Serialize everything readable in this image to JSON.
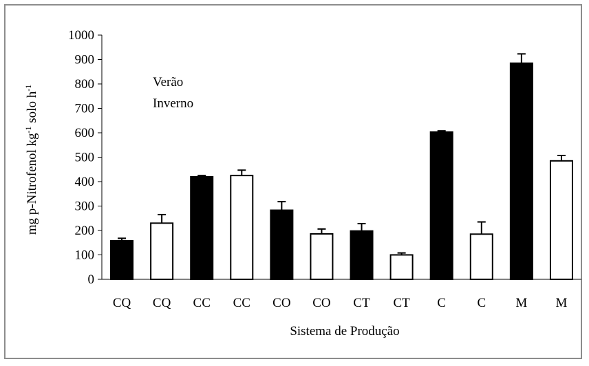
{
  "chart_data": {
    "type": "bar",
    "ylabel": "mg p-Nitrofenol kg",
    "ylabel_sup1": "-1",
    "ylabel_mid": " solo h",
    "ylabel_sup2": "-1",
    "xlabel": "Sistema de Produção",
    "ylim": [
      0,
      1000
    ],
    "yticks": [
      0,
      100,
      200,
      300,
      400,
      500,
      600,
      700,
      800,
      900,
      1000
    ],
    "grid": false,
    "legend_position": "top-left",
    "categories": [
      "CQ",
      "CQ",
      "CC",
      "CC",
      "CO",
      "CO",
      "CT",
      "CT",
      "C",
      "C",
      "M",
      "M"
    ],
    "series": [
      {
        "name": "Verão",
        "color": "#000000",
        "fill": "solid"
      },
      {
        "name": "Inverno",
        "color": "#ffffff",
        "fill": "outline"
      }
    ],
    "bars": [
      {
        "category": "CQ",
        "series": "Verão",
        "value": 158,
        "error": 10
      },
      {
        "category": "CQ",
        "series": "Inverno",
        "value": 230,
        "error": 35
      },
      {
        "category": "CC",
        "series": "Verão",
        "value": 420,
        "error": 5
      },
      {
        "category": "CC",
        "series": "Inverno",
        "value": 425,
        "error": 22
      },
      {
        "category": "CO",
        "series": "Verão",
        "value": 283,
        "error": 35
      },
      {
        "category": "CO",
        "series": "Inverno",
        "value": 186,
        "error": 20
      },
      {
        "category": "CT",
        "series": "Verão",
        "value": 198,
        "error": 30
      },
      {
        "category": "CT",
        "series": "Inverno",
        "value": 100,
        "error": 8
      },
      {
        "category": "C",
        "series": "Verão",
        "value": 603,
        "error": 5
      },
      {
        "category": "C",
        "series": "Inverno",
        "value": 185,
        "error": 50
      },
      {
        "category": "M",
        "series": "Verão",
        "value": 885,
        "error": 38
      },
      {
        "category": "M",
        "series": "Inverno",
        "value": 485,
        "error": 22
      }
    ]
  }
}
